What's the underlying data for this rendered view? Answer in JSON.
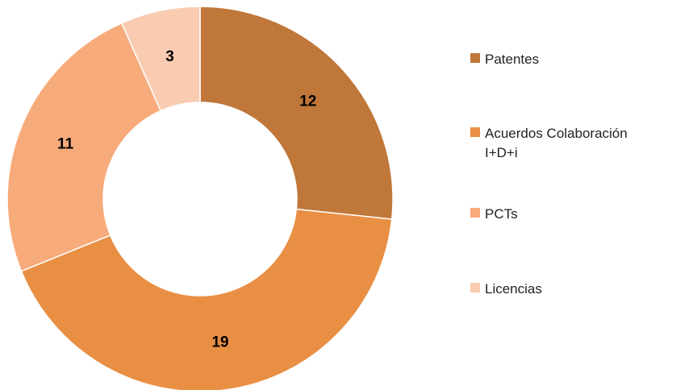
{
  "chart_data": {
    "type": "donut",
    "categories": [
      "Patentes",
      "Acuerdos Colaboración I+D+i",
      "PCTs",
      "Licencias"
    ],
    "values": [
      12,
      19,
      11,
      3
    ],
    "colors": [
      "#c0773a",
      "#e98f44",
      "#f7ab7a",
      "#f9cbb0"
    ],
    "legend": "right"
  }
}
